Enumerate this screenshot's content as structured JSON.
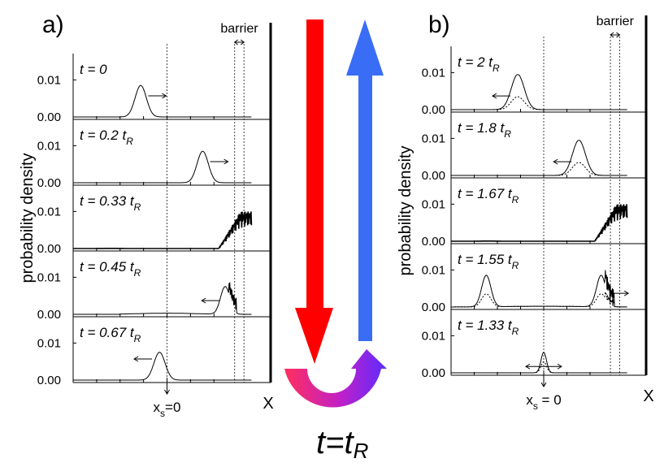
{
  "colors": {
    "down_arrow": "#ff0000",
    "up_arrow": "#3a6df5",
    "u_start": "#ff2f5e",
    "u_mid": "#c020c8",
    "u_end": "#5c2cff",
    "curve": "#000000"
  },
  "center": {
    "down_label": "",
    "up_label": "",
    "formula_t": "t",
    "formula_eq": "=",
    "formula_tr": "t",
    "formula_sub": "R"
  },
  "chart_data": [
    {
      "type": "line",
      "title": "a)",
      "ylabel": "probability density",
      "xlabel": "X",
      "x_marker_label": "x",
      "x_marker_sub": "s",
      "x_marker_value": "=0",
      "barrier_label": "barrier",
      "xlim": [
        -1,
        1
      ],
      "barrier_range": [
        0.72,
        0.82
      ],
      "x_marker_pos": 0,
      "ylim": [
        0,
        0.016
      ],
      "ytick_labels": [
        "0.00",
        "0.01"
      ],
      "yticks": [
        0,
        0.01
      ],
      "panels": [
        {
          "label_pre": "t = 0",
          "label_sub": "",
          "solid": {
            "kind": "gauss",
            "center": -0.28,
            "width": 0.06,
            "amp": 0.0085
          },
          "dashed": null,
          "arrow": {
            "dir": "right",
            "x": -0.2,
            "y": 0.0057
          }
        },
        {
          "label_pre": "t = 0.2 t",
          "label_sub": "R",
          "solid": {
            "kind": "gauss",
            "center": 0.38,
            "width": 0.06,
            "amp": 0.0085
          },
          "dashed": null,
          "arrow": {
            "dir": "right",
            "x": 0.46,
            "y": 0.0057
          }
        },
        {
          "label_pre": "t = 0.33 t",
          "label_sub": "R",
          "solid": {
            "kind": "wall",
            "start": 0.55,
            "amp": 0.01
          },
          "dashed": null,
          "arrow": null
        },
        {
          "label_pre": "t = 0.45 t",
          "label_sub": "R",
          "solid": {
            "kind": "reflect",
            "center": 0.62,
            "width": 0.05,
            "amp": 0.0075
          },
          "dashed": null,
          "arrow": {
            "dir": "left",
            "x": 0.56,
            "y": 0.0037
          }
        },
        {
          "label_pre": "t = 0.67 t",
          "label_sub": "R",
          "solid": {
            "kind": "gauss",
            "center": -0.08,
            "width": 0.06,
            "amp": 0.0075
          },
          "dashed": null,
          "arrow": {
            "dir": "left",
            "x": -0.16,
            "y": 0.0057
          }
        }
      ]
    },
    {
      "type": "line",
      "title": "b)",
      "ylabel": "probability density",
      "xlabel": "X",
      "x_marker_label": "x",
      "x_marker_sub": "s",
      "x_marker_value": " = 0",
      "barrier_label": "barrier",
      "xlim": [
        -1,
        1
      ],
      "barrier_range": [
        0.72,
        0.82
      ],
      "x_marker_pos": 0,
      "ylim": [
        0,
        0.016
      ],
      "ytick_labels": [
        "0.00",
        "0.01"
      ],
      "yticks": [
        0,
        0.01
      ],
      "panels": [
        {
          "label_pre": "t = 2 t",
          "label_sub": "R",
          "solid": {
            "kind": "gauss",
            "center": -0.28,
            "width": 0.07,
            "amp": 0.0095
          },
          "dashed": {
            "kind": "gauss",
            "center": -0.28,
            "width": 0.07,
            "amp": 0.0035
          },
          "arrow": {
            "dir": "left",
            "x": -0.36,
            "y": 0.0037
          }
        },
        {
          "label_pre": "t = 1.8 t",
          "label_sub": "R",
          "solid": {
            "kind": "gauss",
            "center": 0.38,
            "width": 0.07,
            "amp": 0.0095
          },
          "dashed": {
            "kind": "gauss",
            "center": 0.38,
            "width": 0.07,
            "amp": 0.0035
          },
          "arrow": {
            "dir": "left",
            "x": 0.3,
            "y": 0.0037
          }
        },
        {
          "label_pre": "t = 1.67 t",
          "label_sub": "R",
          "solid": {
            "kind": "wall",
            "start": 0.55,
            "amp": 0.01
          },
          "dashed": null,
          "arrow": null
        },
        {
          "label_pre": "t = 1.55 t",
          "label_sub": "R",
          "solid": {
            "kind": "double",
            "c1": -0.62,
            "c2": 0.62,
            "width": 0.05,
            "amp": 0.0085
          },
          "dashed": {
            "kind": "double",
            "c1": -0.62,
            "c2": 0.62,
            "width": 0.05,
            "amp": 0.0035
          },
          "arrow": {
            "dir": "right",
            "x": 0.72,
            "y": 0.0037
          }
        },
        {
          "label_pre": "t = 1.33 t",
          "label_sub": "R",
          "solid": {
            "kind": "gauss",
            "center": 0.0,
            "width": 0.03,
            "amp": 0.0055
          },
          "dashed": {
            "kind": "gauss",
            "center": 0.0,
            "width": 0.03,
            "amp": 0.003
          },
          "arrow": {
            "dir": "both",
            "x": 0.0,
            "y": 0.0017
          }
        }
      ]
    }
  ]
}
